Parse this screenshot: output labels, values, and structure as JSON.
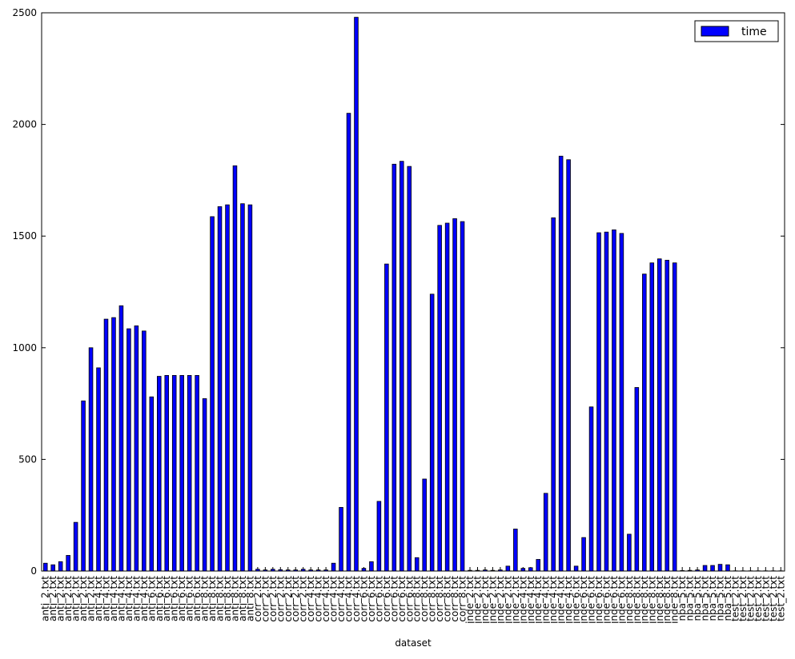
{
  "chart_data": {
    "type": "bar",
    "xlabel": "dataset",
    "categories": [
      "anti_2.txt",
      "anti_2.txt",
      "anti_2.txt",
      "anti_2.txt",
      "anti_2.txt",
      "anti_2.txt",
      "anti_2.txt",
      "anti_4.txt",
      "anti_4.txt",
      "anti_4.txt",
      "anti_4.txt",
      "anti_4.txt",
      "anti_4.txt",
      "anti_4.txt",
      "anti_6.txt",
      "anti_6.txt",
      "anti_6.txt",
      "anti_6.txt",
      "anti_6.txt",
      "anti_6.txt",
      "anti_6.txt",
      "anti_8.txt",
      "anti_8.txt",
      "anti_8.txt",
      "anti_8.txt",
      "anti_8.txt",
      "anti_8.txt",
      "anti_8.txt",
      "corr_2.txt",
      "corr_2.txt",
      "corr_2.txt",
      "corr_2.txt",
      "corr_2.txt",
      "corr_2.txt",
      "corr_2.txt",
      "corr_4.txt",
      "corr_4.txt",
      "corr_4.txt",
      "corr_4.txt",
      "corr_4.txt",
      "corr_4.txt",
      "corr_4.txt",
      "corr_6.txt",
      "corr_6.txt",
      "corr_6.txt",
      "corr_6.txt",
      "corr_6.txt",
      "corr_6.txt",
      "corr_6.txt",
      "corr_8.txt",
      "corr_8.txt",
      "corr_8.txt",
      "corr_8.txt",
      "corr_8.txt",
      "corr_8.txt",
      "corr_8.txt",
      "inde_2.txt",
      "inde_2.txt",
      "inde_2.txt",
      "inde_2.txt",
      "inde_2.txt",
      "inde_2.txt",
      "inde_2.txt",
      "inde_4.txt",
      "inde_4.txt",
      "inde_4.txt",
      "inde_4.txt",
      "inde_4.txt",
      "inde_4.txt",
      "inde_4.txt",
      "inde_6.txt",
      "inde_6.txt",
      "inde_6.txt",
      "inde_6.txt",
      "inde_6.txt",
      "inde_6.txt",
      "inde_6.txt",
      "inde_8.txt",
      "inde_8.txt",
      "inde_8.txt",
      "inde_8.txt",
      "inde_8.txt",
      "inde_8.txt",
      "inde_8.txt",
      "nba_5.txt",
      "nba_5.txt",
      "nba_5.txt",
      "nba_5.txt",
      "nba_5.txt",
      "nba_5.txt",
      "nba_5.txt",
      "test_2.txt",
      "test_2.txt",
      "test_2.txt",
      "test_2.txt",
      "test_2.txt",
      "test_2.txt",
      "test_2.txt"
    ],
    "series": [
      {
        "name": "time",
        "color": "#0000ff",
        "values": [
          35,
          28,
          42,
          70,
          218,
          762,
          1000,
          910,
          1128,
          1135,
          1188,
          1085,
          1098,
          1075,
          780,
          872,
          876,
          876,
          876,
          876,
          876,
          772,
          1587,
          1632,
          1640,
          1815,
          1645,
          1640,
          8,
          5,
          8,
          6,
          5,
          5,
          8,
          5,
          5,
          5,
          35,
          285,
          2050,
          2480,
          12,
          42,
          312,
          1375,
          1822,
          1835,
          1812,
          60,
          412,
          1240,
          1548,
          1558,
          1578,
          1565,
          3,
          3,
          5,
          3,
          5,
          22,
          188,
          12,
          15,
          52,
          348,
          1582,
          1858,
          1842,
          22,
          150,
          735,
          1515,
          1518,
          1528,
          1512,
          165,
          822,
          1330,
          1380,
          1398,
          1392,
          1380,
          2,
          3,
          5,
          25,
          25,
          30,
          28,
          1,
          1,
          1,
          1,
          1,
          1,
          1
        ]
      }
    ],
    "ylim": [
      0,
      2500
    ],
    "yticks": [
      0,
      500,
      1000,
      1500,
      2000,
      2500
    ],
    "legend": "upper right"
  }
}
